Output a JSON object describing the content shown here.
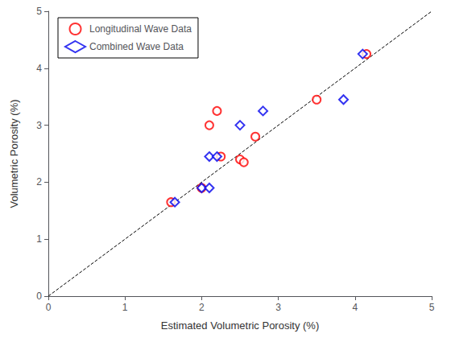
{
  "chart_data": {
    "type": "scatter",
    "xlabel": "Estimated Volumetric Porosity (%)",
    "ylabel": "Volumetric Porosity (%)",
    "xlim": [
      0,
      5
    ],
    "ylim": [
      0,
      5
    ],
    "xticks": [
      0,
      1,
      2,
      3,
      4,
      5
    ],
    "yticks": [
      0,
      1,
      2,
      3,
      4,
      5
    ],
    "grid": false,
    "legend": "upper left",
    "series": [
      {
        "name": "Longitudinal Wave Data",
        "type": "scatter",
        "color": "#FF0000",
        "marker": "circle",
        "x": [
          1.6,
          2.0,
          2.1,
          2.2,
          2.25,
          2.5,
          2.55,
          2.7,
          3.5,
          4.15
        ],
        "values": [
          1.65,
          1.9,
          3.0,
          3.25,
          2.45,
          2.4,
          2.35,
          2.8,
          3.45,
          4.25
        ]
      },
      {
        "name": "Combined Wave Data",
        "type": "scatter",
        "color": "#0000EE",
        "marker": "diamond",
        "x": [
          1.65,
          2.0,
          2.1,
          2.1,
          2.2,
          2.5,
          2.8,
          3.85,
          4.1
        ],
        "values": [
          1.65,
          1.9,
          1.9,
          2.45,
          2.45,
          3.0,
          3.25,
          3.45,
          4.25
        ]
      },
      {
        "type": "line",
        "color": "#000000",
        "line_style": "dashed",
        "x": [
          0,
          5
        ],
        "values": [
          0,
          5
        ]
      }
    ]
  }
}
